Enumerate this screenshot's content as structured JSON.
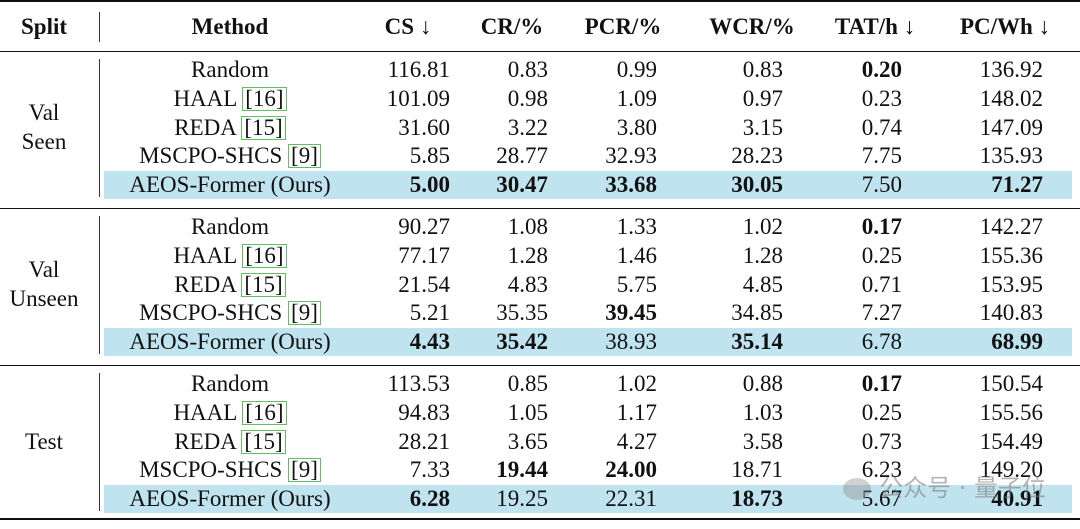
{
  "headers": [
    "Split",
    "Method",
    "CS ↓",
    "CR/%",
    "PCR/%",
    "WCR/%",
    "TAT/h ↓",
    "PC/Wh ↓"
  ],
  "groups": [
    {
      "split_lines": [
        "Val",
        "Seen"
      ],
      "rows": [
        {
          "method": "Random",
          "ref": "",
          "values": [
            "116.81",
            "0.83",
            "0.99",
            "0.83",
            "0.20",
            "136.92"
          ],
          "bold": [
            false,
            false,
            false,
            false,
            true,
            false
          ],
          "highlight": false
        },
        {
          "method": "HAAL",
          "ref": "[16]",
          "values": [
            "101.09",
            "0.98",
            "1.09",
            "0.97",
            "0.23",
            "148.02"
          ],
          "bold": [
            false,
            false,
            false,
            false,
            false,
            false
          ],
          "highlight": false
        },
        {
          "method": "REDA",
          "ref": "[15]",
          "values": [
            "31.60",
            "3.22",
            "3.80",
            "3.15",
            "0.74",
            "147.09"
          ],
          "bold": [
            false,
            false,
            false,
            false,
            false,
            false
          ],
          "highlight": false
        },
        {
          "method": "MSCPO-SHCS",
          "ref": "[9]",
          "values": [
            "5.85",
            "28.77",
            "32.93",
            "28.23",
            "7.75",
            "135.93"
          ],
          "bold": [
            false,
            false,
            false,
            false,
            false,
            false
          ],
          "highlight": false
        },
        {
          "method": "AEOS-Former (Ours)",
          "ref": "",
          "values": [
            "5.00",
            "30.47",
            "33.68",
            "30.05",
            "7.50",
            "71.27"
          ],
          "bold": [
            true,
            true,
            true,
            true,
            false,
            true
          ],
          "highlight": true
        }
      ]
    },
    {
      "split_lines": [
        "Val",
        "Unseen"
      ],
      "rows": [
        {
          "method": "Random",
          "ref": "",
          "values": [
            "90.27",
            "1.08",
            "1.33",
            "1.02",
            "0.17",
            "142.27"
          ],
          "bold": [
            false,
            false,
            false,
            false,
            true,
            false
          ],
          "highlight": false
        },
        {
          "method": "HAAL",
          "ref": "[16]",
          "values": [
            "77.17",
            "1.28",
            "1.46",
            "1.28",
            "0.25",
            "155.36"
          ],
          "bold": [
            false,
            false,
            false,
            false,
            false,
            false
          ],
          "highlight": false
        },
        {
          "method": "REDA",
          "ref": "[15]",
          "values": [
            "21.54",
            "4.83",
            "5.75",
            "4.85",
            "0.71",
            "153.95"
          ],
          "bold": [
            false,
            false,
            false,
            false,
            false,
            false
          ],
          "highlight": false
        },
        {
          "method": "MSCPO-SHCS",
          "ref": "[9]",
          "values": [
            "5.21",
            "35.35",
            "39.45",
            "34.85",
            "7.27",
            "140.83"
          ],
          "bold": [
            false,
            false,
            true,
            false,
            false,
            false
          ],
          "highlight": false
        },
        {
          "method": "AEOS-Former (Ours)",
          "ref": "",
          "values": [
            "4.43",
            "35.42",
            "38.93",
            "35.14",
            "6.78",
            "68.99"
          ],
          "bold": [
            true,
            true,
            false,
            true,
            false,
            true
          ],
          "highlight": true
        }
      ]
    },
    {
      "split_lines": [
        "Test"
      ],
      "rows": [
        {
          "method": "Random",
          "ref": "",
          "values": [
            "113.53",
            "0.85",
            "1.02",
            "0.88",
            "0.17",
            "150.54"
          ],
          "bold": [
            false,
            false,
            false,
            false,
            true,
            false
          ],
          "highlight": false
        },
        {
          "method": "HAAL",
          "ref": "[16]",
          "values": [
            "94.83",
            "1.05",
            "1.17",
            "1.03",
            "0.25",
            "155.56"
          ],
          "bold": [
            false,
            false,
            false,
            false,
            false,
            false
          ],
          "highlight": false
        },
        {
          "method": "REDA",
          "ref": "[15]",
          "values": [
            "28.21",
            "3.65",
            "4.27",
            "3.58",
            "0.73",
            "154.49"
          ],
          "bold": [
            false,
            false,
            false,
            false,
            false,
            false
          ],
          "highlight": false
        },
        {
          "method": "MSCPO-SHCS",
          "ref": "[9]",
          "values": [
            "7.33",
            "19.44",
            "24.00",
            "18.71",
            "6.23",
            "149.20"
          ],
          "bold": [
            false,
            true,
            true,
            false,
            false,
            false
          ],
          "highlight": false
        },
        {
          "method": "AEOS-Former (Ours)",
          "ref": "",
          "values": [
            "6.28",
            "19.25",
            "22.31",
            "18.73",
            "5.67",
            "40.91"
          ],
          "bold": [
            true,
            false,
            false,
            true,
            false,
            true
          ],
          "highlight": true
        }
      ]
    }
  ],
  "watermark": "公众号 · 量子位",
  "colors": {
    "highlight": "#bfe3ef",
    "citation_box": "#5fbf5f"
  }
}
